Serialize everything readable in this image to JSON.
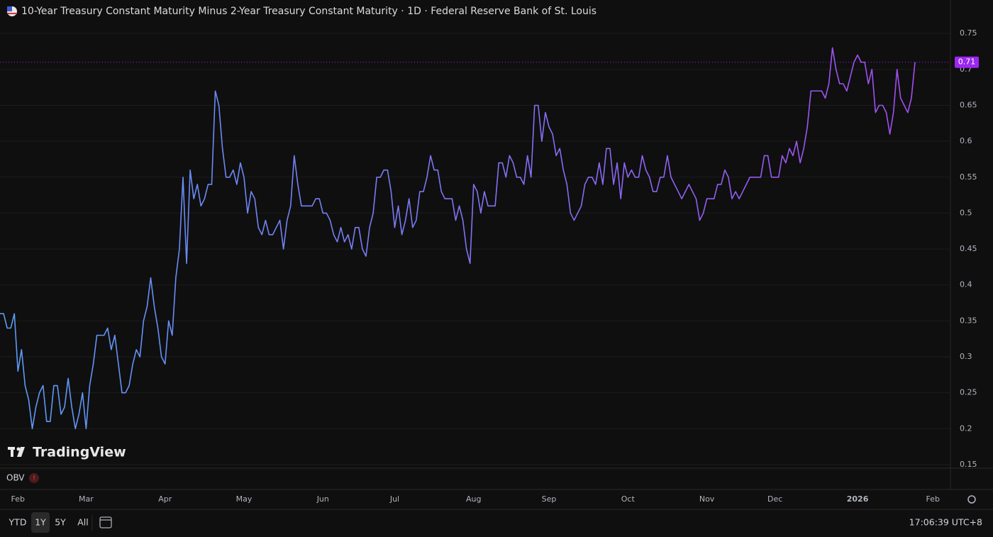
{
  "chart_data": {
    "type": "line",
    "title": "10-Year Treasury Constant Maturity Minus 2-Year Treasury Constant Maturity · 1D · Federal Reserve Bank of St. Louis",
    "watermark": "TradingView",
    "indicator": "OBV",
    "indicator_warning": "!",
    "range_buttons": [
      "YTD",
      "1Y",
      "5Y",
      "All"
    ],
    "selected_range": "1Y",
    "clock": "17:06:39 UTC+8",
    "colors": [
      "#5b9cf6",
      "#a24df2"
    ],
    "last_value_color": "#9c27f0",
    "grid": true,
    "ylim": [
      0.145,
      0.767
    ],
    "yticks": [
      0.15,
      0.2,
      0.25,
      0.3,
      0.35,
      0.4,
      0.45,
      0.5,
      0.55,
      0.6,
      0.65,
      0.7,
      0.75
    ],
    "categories": [
      null,
      null,
      null,
      null,
      null,
      "Feb",
      null,
      null,
      null,
      null,
      null,
      null,
      null,
      null,
      null,
      null,
      null,
      null,
      null,
      null,
      null,
      null,
      null,
      null,
      "Mar",
      null,
      null,
      null,
      null,
      null,
      null,
      null,
      null,
      null,
      null,
      null,
      null,
      null,
      null,
      null,
      null,
      null,
      null,
      null,
      null,
      null,
      "Apr",
      null,
      null,
      null,
      null,
      null,
      null,
      null,
      null,
      null,
      null,
      null,
      null,
      null,
      null,
      null,
      null,
      null,
      null,
      null,
      null,
      null,
      "May",
      null,
      null,
      null,
      null,
      null,
      null,
      null,
      null,
      null,
      null,
      null,
      null,
      null,
      null,
      null,
      null,
      null,
      null,
      null,
      null,
      null,
      "Jun",
      null,
      null,
      null,
      null,
      null,
      null,
      null,
      null,
      null,
      null,
      null,
      null,
      null,
      null,
      null,
      null,
      null,
      null,
      null,
      "Jul",
      null,
      null,
      null,
      null,
      null,
      null,
      null,
      null,
      null,
      null,
      null,
      null,
      null,
      null,
      null,
      null,
      null,
      null,
      null,
      null,
      null,
      "Aug",
      null,
      null,
      null,
      null,
      null,
      null,
      null,
      null,
      null,
      null,
      null,
      null,
      null,
      null,
      null,
      null,
      null,
      null,
      null,
      null,
      "Sep",
      null,
      null,
      null,
      null,
      null,
      null,
      null,
      null,
      null,
      null,
      null,
      null,
      null,
      null,
      null,
      null,
      null,
      null,
      null,
      null,
      null,
      "Oct",
      null,
      null,
      null,
      null,
      null,
      null,
      null,
      null,
      null,
      null,
      null,
      null,
      null,
      null,
      null,
      null,
      null,
      null,
      null,
      null,
      null,
      "Nov",
      null,
      null,
      null,
      null,
      null,
      null,
      null,
      null,
      null,
      null,
      null,
      null,
      null,
      null,
      null,
      null,
      null,
      null,
      "Dec",
      null,
      null,
      null,
      null,
      null,
      null,
      null,
      null,
      null,
      null,
      null,
      null,
      null,
      null,
      null,
      null,
      null,
      null,
      null,
      null,
      null,
      null,
      "2026",
      null,
      null,
      null,
      null,
      null,
      null,
      null,
      null,
      null,
      null,
      null,
      null,
      null,
      null,
      null,
      null,
      null,
      null,
      null,
      null,
      "Feb"
    ],
    "values": [
      0.36,
      0.36,
      0.34,
      0.34,
      0.36,
      0.28,
      0.31,
      0.26,
      0.24,
      0.2,
      0.23,
      0.25,
      0.26,
      0.21,
      0.21,
      0.26,
      0.26,
      0.22,
      0.23,
      0.27,
      0.23,
      0.2,
      0.22,
      0.25,
      0.2,
      0.26,
      0.29,
      0.33,
      0.33,
      0.33,
      0.34,
      0.31,
      0.33,
      0.29,
      0.25,
      0.25,
      0.26,
      0.29,
      0.31,
      0.3,
      0.35,
      0.37,
      0.41,
      0.37,
      0.34,
      0.3,
      0.29,
      0.35,
      0.33,
      0.41,
      0.45,
      0.55,
      0.43,
      0.56,
      0.52,
      0.54,
      0.51,
      0.52,
      0.54,
      0.54,
      0.67,
      0.65,
      0.59,
      0.55,
      0.55,
      0.56,
      0.54,
      0.57,
      0.55,
      0.5,
      0.53,
      0.52,
      0.48,
      0.47,
      0.49,
      0.47,
      0.47,
      0.48,
      0.49,
      0.45,
      0.49,
      0.51,
      0.58,
      0.54,
      0.51,
      0.51,
      0.51,
      0.51,
      0.52,
      0.52,
      0.5,
      0.5,
      0.49,
      0.47,
      0.46,
      0.48,
      0.46,
      0.47,
      0.45,
      0.48,
      0.48,
      0.45,
      0.44,
      0.48,
      0.5,
      0.55,
      0.55,
      0.56,
      0.56,
      0.53,
      0.48,
      0.51,
      0.47,
      0.49,
      0.52,
      0.48,
      0.49,
      0.53,
      0.53,
      0.55,
      0.58,
      0.56,
      0.56,
      0.53,
      0.52,
      0.52,
      0.52,
      0.49,
      0.51,
      0.49,
      0.45,
      0.43,
      0.54,
      0.53,
      0.5,
      0.53,
      0.51,
      0.51,
      0.51,
      0.57,
      0.57,
      0.55,
      0.58,
      0.57,
      0.55,
      0.55,
      0.54,
      0.58,
      0.55,
      0.65,
      0.65,
      0.6,
      0.64,
      0.62,
      0.61,
      0.58,
      0.59,
      0.56,
      0.54,
      0.5,
      0.49,
      0.5,
      0.51,
      0.54,
      0.55,
      0.55,
      0.54,
      0.57,
      0.54,
      0.59,
      0.59,
      0.54,
      0.57,
      0.52,
      0.57,
      0.55,
      0.56,
      0.55,
      0.55,
      0.58,
      0.56,
      0.55,
      0.53,
      0.53,
      0.55,
      0.55,
      0.58,
      0.55,
      0.54,
      0.53,
      0.52,
      0.53,
      0.54,
      0.53,
      0.52,
      0.49,
      0.5,
      0.52,
      0.52,
      0.52,
      0.54,
      0.54,
      0.56,
      0.55,
      0.52,
      0.53,
      0.52,
      0.53,
      0.54,
      0.55,
      0.55,
      0.55,
      0.55,
      0.58,
      0.58,
      0.55,
      0.55,
      0.55,
      0.58,
      0.57,
      0.59,
      0.58,
      0.6,
      0.57,
      0.59,
      0.62,
      0.67,
      0.67,
      0.67,
      0.67,
      0.66,
      0.68,
      0.73,
      0.7,
      0.68,
      0.68,
      0.67,
      0.69,
      0.71,
      0.72,
      0.71,
      0.71,
      0.68,
      0.7,
      0.64,
      0.65,
      0.65,
      0.64,
      0.61,
      0.64,
      0.7,
      0.66,
      0.65,
      0.64,
      0.66,
      0.71,
      null,
      null,
      null,
      null,
      null
    ]
  }
}
